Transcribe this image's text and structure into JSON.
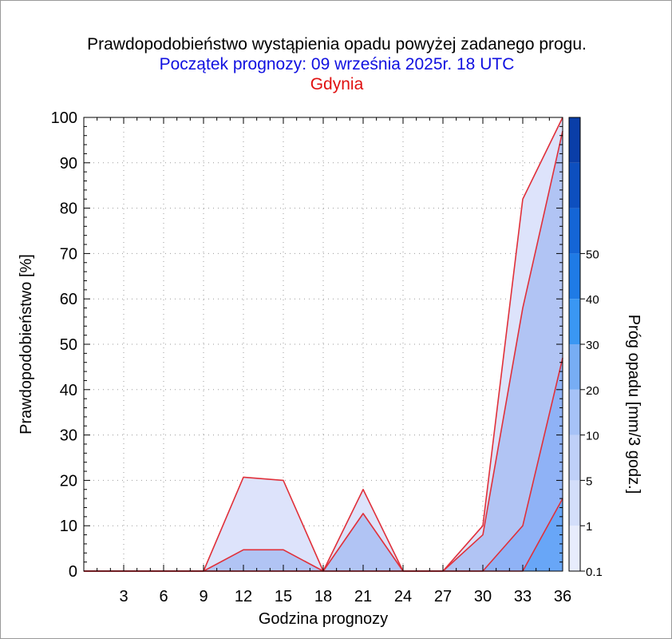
{
  "titles": {
    "line1": "Prawdopodobieństwo wystąpienia opadu powyżej zadanego progu.",
    "line2": "Początek prognozy: 09 września 2025r. 18 UTC",
    "line3": "Gdynia"
  },
  "colors": {
    "title1": "#000000",
    "title2": "#1010e0",
    "title3": "#e01010",
    "outline": "#e0303a"
  },
  "chart_data": {
    "type": "area",
    "xlabel": "Godzina prognozy",
    "ylabel": "Prawdopodobieństwo [%]",
    "colorbar_label": "Próg opadu [mm/3 godz.]",
    "xlim": [
      0,
      36
    ],
    "ylim": [
      0,
      100
    ],
    "x_ticks": [
      3,
      6,
      9,
      12,
      15,
      18,
      21,
      24,
      27,
      30,
      33,
      36
    ],
    "y_ticks": [
      0,
      10,
      20,
      30,
      40,
      50,
      60,
      70,
      80,
      90,
      100
    ],
    "grid": true,
    "x": [
      0,
      3,
      6,
      9,
      12,
      15,
      18,
      21,
      24,
      27,
      30,
      33,
      36
    ],
    "series": [
      {
        "name": "0.1",
        "color": "#dde3fb",
        "values": [
          0,
          0,
          0,
          0,
          20.7,
          20,
          0,
          18,
          0,
          0,
          10,
          82,
          100
        ]
      },
      {
        "name": "1",
        "color": "#b1c4f4",
        "values": [
          0,
          0,
          0,
          0,
          4.7,
          4.7,
          0,
          12.7,
          0,
          0,
          8,
          58,
          97
        ]
      },
      {
        "name": "5",
        "color": "#8fb2f6",
        "values": [
          0,
          0,
          0,
          0,
          0,
          0,
          0,
          0,
          0,
          0,
          0,
          10,
          47
        ]
      },
      {
        "name": "10",
        "color": "#68a6f7",
        "values": [
          0,
          0,
          0,
          0,
          0,
          0,
          0,
          0,
          0,
          0,
          0,
          0,
          16
        ]
      }
    ],
    "colorbar": {
      "ticks": [
        "0.1",
        "1",
        "5",
        "10",
        "20",
        "30",
        "40",
        "50"
      ],
      "band_colors": [
        "#e7ecfc",
        "#d3defa",
        "#bfd0f8",
        "#a6c2f7",
        "#77adf4",
        "#3a97f3",
        "#1f7be6",
        "#1465d6",
        "#0d4fbf",
        "#0a3ea8"
      ]
    }
  }
}
